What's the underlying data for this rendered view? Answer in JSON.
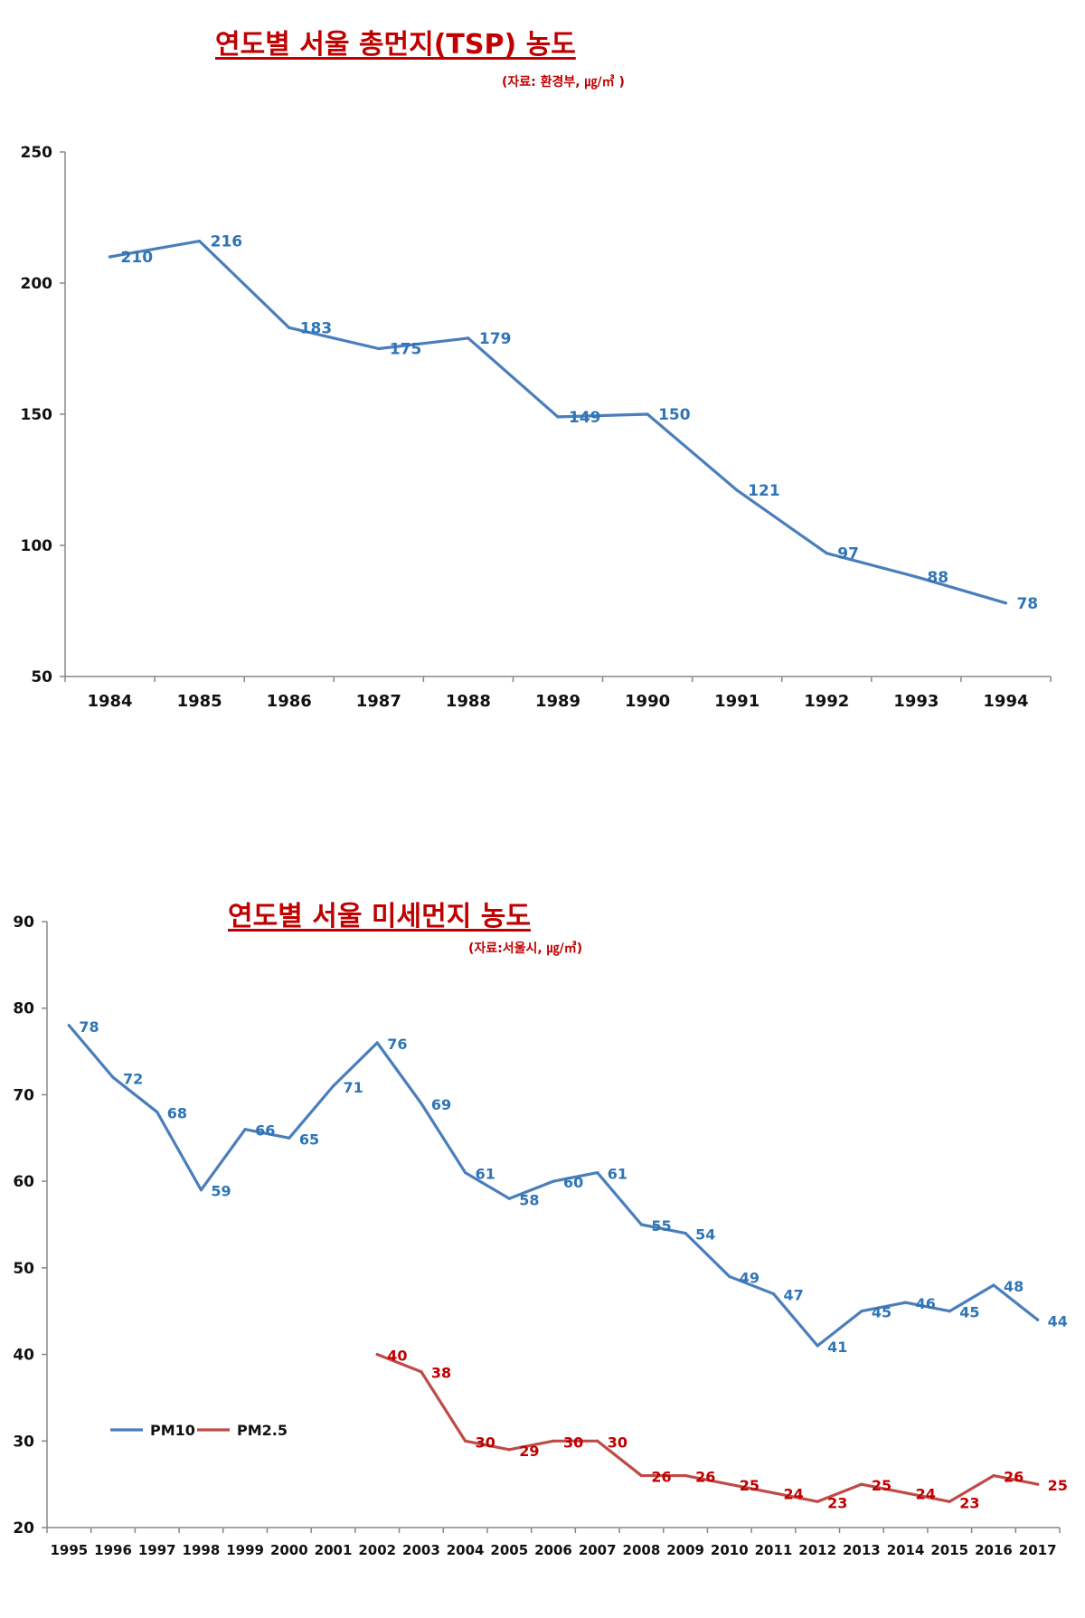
{
  "chart_data": [
    {
      "type": "line",
      "title": "연도별 서울 총먼지(TSP) 농도",
      "subtitle": "(자료: 환경부, ㎍/㎥ )",
      "categories": [
        "1984",
        "1985",
        "1986",
        "1987",
        "1988",
        "1989",
        "1990",
        "1991",
        "1992",
        "1993",
        "1994"
      ],
      "series": [
        {
          "values": [
            210,
            216,
            183,
            175,
            179,
            149,
            150,
            121,
            97,
            88,
            78
          ],
          "color": "#4a7ebb",
          "label_color": "#2e75b6"
        }
      ],
      "ylim": [
        50,
        250
      ],
      "yticks": [
        50,
        100,
        150,
        200,
        250
      ],
      "xlabel": "",
      "ylabel": "",
      "grid": false,
      "legend": "none"
    },
    {
      "type": "line",
      "title": "연도별 서울 미세먼지 농도",
      "subtitle": "(자료:서울시, ㎍/㎥)",
      "categories": [
        "1995",
        "1996",
        "1997",
        "1998",
        "1999",
        "2000",
        "2001",
        "2002",
        "2003",
        "2004",
        "2005",
        "2006",
        "2007",
        "2008",
        "2009",
        "2010",
        "2011",
        "2012",
        "2013",
        "2014",
        "2015",
        "2016",
        "2017"
      ],
      "series": [
        {
          "name": "PM10",
          "values": [
            78,
            72,
            68,
            59,
            66,
            65,
            71,
            76,
            69,
            61,
            58,
            60,
            61,
            55,
            54,
            49,
            47,
            41,
            45,
            46,
            45,
            48,
            44
          ],
          "color": "#4a7ebb",
          "label_color": "#2e75b6"
        },
        {
          "name": "PM2.5",
          "values": [
            null,
            null,
            null,
            null,
            null,
            null,
            null,
            40,
            38,
            30,
            29,
            30,
            30,
            26,
            26,
            25,
            24,
            23,
            25,
            24,
            23,
            26,
            25
          ],
          "color": "#be4b48",
          "label_color": "#c00000"
        }
      ],
      "ylim": [
        20,
        90
      ],
      "yticks": [
        20,
        30,
        40,
        50,
        60,
        70,
        80,
        90
      ],
      "xlabel": "",
      "ylabel": "",
      "grid": false,
      "legend": "left"
    }
  ]
}
